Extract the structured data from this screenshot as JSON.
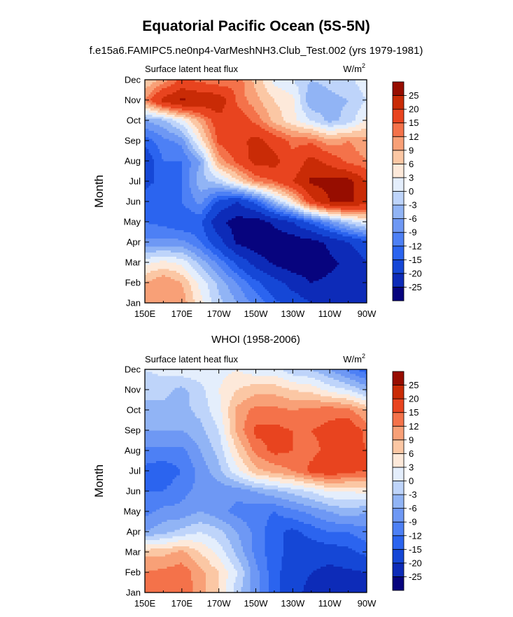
{
  "figure": {
    "title": "Equatorial Pacific Ocean (5S-5N)",
    "subtitle": "f.e15a6.FAMIPC5.ne0np4-VarMeshNH3.Club_Test.002 (yrs 1979-1981)"
  },
  "chart_data": [
    {
      "type": "heatmap",
      "title": "",
      "left_label": "Surface latent heat flux",
      "units_label": "W/m",
      "units_superscript": "2",
      "ylabel": "Month",
      "xlabel": "",
      "x_tick_labels": [
        "150E",
        "170E",
        "170W",
        "150W",
        "130W",
        "110W",
        "90W"
      ],
      "x_tick_lon": [
        150,
        170,
        190,
        210,
        230,
        250,
        270
      ],
      "xlim": [
        150,
        270
      ],
      "y_tick_labels": [
        "Jan",
        "Feb",
        "Mar",
        "Apr",
        "May",
        "Jun",
        "Jul",
        "Aug",
        "Sep",
        "Oct",
        "Nov",
        "Dec"
      ],
      "ylim": [
        1,
        12
      ],
      "x": [
        150,
        160,
        170,
        180,
        190,
        200,
        210,
        220,
        230,
        240,
        250,
        260,
        270
      ],
      "y": [
        1,
        2,
        3,
        4,
        5,
        6,
        7,
        8,
        9,
        10,
        11,
        12
      ],
      "z": [
        [
          10,
          12,
          11,
          4,
          -2,
          -6,
          -10,
          -14,
          -17,
          -20,
          -21,
          -20,
          -20
        ],
        [
          9,
          12,
          9,
          2,
          -4,
          -9,
          -14,
          -18,
          -22,
          -25,
          -24,
          -23,
          -20
        ],
        [
          2,
          4,
          2,
          -4,
          -10,
          -16,
          -22,
          -26,
          -28,
          -28,
          -26,
          -24,
          -20
        ],
        [
          -8,
          -8,
          -8,
          -12,
          -18,
          -26,
          -28,
          -28,
          -28,
          -27,
          -24,
          -20,
          -17
        ],
        [
          -12,
          -13,
          -15,
          -14,
          -24,
          -27,
          -28,
          -24,
          -20,
          -14,
          -8,
          -2,
          2
        ],
        [
          -14,
          -12,
          -12,
          -8,
          -16,
          -20,
          -14,
          -4,
          5,
          18,
          25,
          26,
          22
        ],
        [
          -16,
          -14,
          -12,
          -4,
          -2,
          5,
          12,
          15,
          20,
          26,
          27,
          27,
          20
        ],
        [
          -18,
          -12,
          -12,
          -6,
          10,
          16,
          22,
          22,
          16,
          22,
          18,
          14,
          12
        ],
        [
          -14,
          -10,
          -8,
          4,
          16,
          18,
          22,
          18,
          14,
          14,
          10,
          12,
          10
        ],
        [
          -6,
          -4,
          2,
          10,
          18,
          18,
          14,
          8,
          4,
          0,
          -4,
          -2,
          4
        ],
        [
          12,
          22,
          26,
          24,
          24,
          14,
          10,
          6,
          4,
          -6,
          -4,
          -3,
          0
        ],
        [
          6,
          10,
          16,
          14,
          12,
          14,
          8,
          2,
          0,
          -3,
          -2,
          -1,
          2
        ]
      ],
      "colorbar": {
        "levels": [
          -25,
          -20,
          -15,
          -12,
          -9,
          -6,
          -3,
          0,
          3,
          6,
          9,
          12,
          15,
          20,
          25
        ],
        "label_texts": [
          "-25",
          "-20",
          "-15",
          "-12",
          "-9",
          "-6",
          "-3",
          "0",
          "3",
          "6",
          "9",
          "12",
          "15",
          "20",
          "25"
        ],
        "colors": [
          "#07047e",
          "#0d2bb8",
          "#1547d6",
          "#2b64ef",
          "#4d80f5",
          "#6e98f4",
          "#91b4f5",
          "#bed4fa",
          "#e4eefc",
          "#fde9da",
          "#fbc7a4",
          "#f8a077",
          "#f4724a",
          "#e8441f",
          "#c92b06",
          "#970d00"
        ]
      }
    },
    {
      "type": "heatmap",
      "title": "WHOI (1958-2006)",
      "left_label": "Surface latent heat flux",
      "units_label": "W/m",
      "units_superscript": "2",
      "ylabel": "Month",
      "xlabel": "",
      "x_tick_labels": [
        "150E",
        "170E",
        "170W",
        "150W",
        "130W",
        "110W",
        "90W"
      ],
      "x_tick_lon": [
        150,
        170,
        190,
        210,
        230,
        250,
        270
      ],
      "xlim": [
        150,
        270
      ],
      "y_tick_labels": [
        "Jan",
        "Feb",
        "Mar",
        "Apr",
        "May",
        "Jun",
        "Jul",
        "Aug",
        "Sep",
        "Oct",
        "Nov",
        "Dec"
      ],
      "ylim": [
        1,
        12
      ],
      "x": [
        150,
        160,
        170,
        180,
        190,
        200,
        210,
        220,
        230,
        240,
        250,
        260,
        270
      ],
      "y": [
        1,
        2,
        3,
        4,
        5,
        6,
        7,
        8,
        9,
        10,
        11,
        12
      ],
      "z": [
        [
          14,
          15,
          15,
          10,
          6,
          -2,
          -8,
          -14,
          -18,
          -22,
          -22,
          -24,
          -25
        ],
        [
          12,
          13,
          14,
          10,
          6,
          0,
          -8,
          -14,
          -17,
          -20,
          -22,
          -21,
          -20
        ],
        [
          8,
          8,
          10,
          6,
          2,
          -4,
          -10,
          -14,
          -16,
          -17,
          -17,
          -16,
          -14
        ],
        [
          -6,
          -4,
          -2,
          0,
          -2,
          -6,
          -10,
          -14,
          -16,
          -14,
          -12,
          -12,
          -10
        ],
        [
          -10,
          -8,
          -8,
          -6,
          -8,
          -10,
          -11,
          -12,
          -10,
          -8,
          -6,
          -4,
          -6
        ],
        [
          -12,
          -12,
          -10,
          -8,
          -8,
          -8,
          -6,
          -4,
          -2,
          0,
          3,
          3,
          4
        ],
        [
          -13,
          -14,
          -12,
          -8,
          -4,
          2,
          8,
          10,
          12,
          16,
          18,
          16,
          15
        ],
        [
          -10,
          -10,
          -10,
          -6,
          -2,
          6,
          13,
          16,
          15,
          14,
          16,
          17,
          15
        ],
        [
          -6,
          -6,
          -6,
          -4,
          0,
          10,
          16,
          16,
          15,
          15,
          16,
          18,
          14
        ],
        [
          -4,
          -4,
          -4,
          -2,
          2,
          10,
          13,
          13,
          12,
          13,
          14,
          13,
          9
        ],
        [
          -2,
          -2,
          -4,
          -1,
          3,
          6,
          8,
          8,
          6,
          5,
          2,
          0,
          -4
        ],
        [
          0,
          1,
          2,
          2,
          2,
          3,
          1,
          1,
          -2,
          -3,
          -6,
          -10,
          -14
        ]
      ],
      "colorbar": {
        "levels": [
          -25,
          -20,
          -15,
          -12,
          -9,
          -6,
          -3,
          0,
          3,
          6,
          9,
          12,
          15,
          20,
          25
        ],
        "label_texts": [
          "-25",
          "-20",
          "-15",
          "-12",
          "-9",
          "-6",
          "-3",
          "0",
          "3",
          "6",
          "9",
          "12",
          "15",
          "20",
          "25"
        ],
        "colors": [
          "#07047e",
          "#0d2bb8",
          "#1547d6",
          "#2b64ef",
          "#4d80f5",
          "#6e98f4",
          "#91b4f5",
          "#bed4fa",
          "#e4eefc",
          "#fde9da",
          "#fbc7a4",
          "#f8a077",
          "#f4724a",
          "#e8441f",
          "#c92b06",
          "#970d00"
        ]
      }
    }
  ]
}
